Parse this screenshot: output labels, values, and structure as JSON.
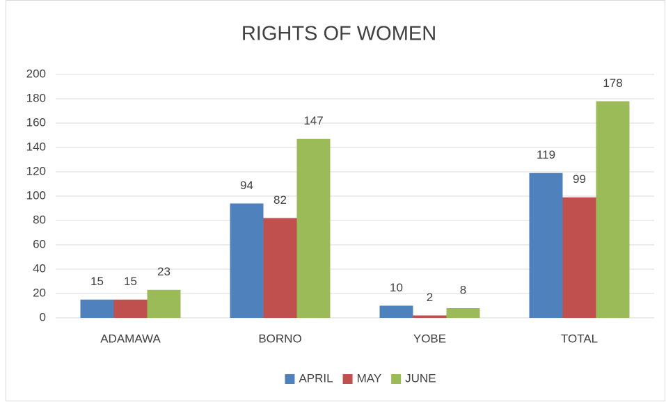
{
  "chart_data": {
    "type": "bar",
    "title": "RIGHTS OF WOMEN",
    "categories": [
      "ADAMAWA",
      "BORNO",
      "YOBE",
      "TOTAL"
    ],
    "series": [
      {
        "name": "APRIL",
        "color": "#4f81bd",
        "values": [
          15,
          94,
          10,
          119
        ]
      },
      {
        "name": "MAY",
        "color": "#c0504d",
        "values": [
          15,
          82,
          2,
          99
        ]
      },
      {
        "name": "JUNE",
        "color": "#9bbb59",
        "values": [
          23,
          147,
          8,
          178
        ]
      }
    ],
    "ylim": [
      0,
      200
    ],
    "yticks": [
      0,
      20,
      40,
      60,
      80,
      100,
      120,
      140,
      160,
      180,
      200
    ],
    "grid": true,
    "legend": "bottom"
  }
}
